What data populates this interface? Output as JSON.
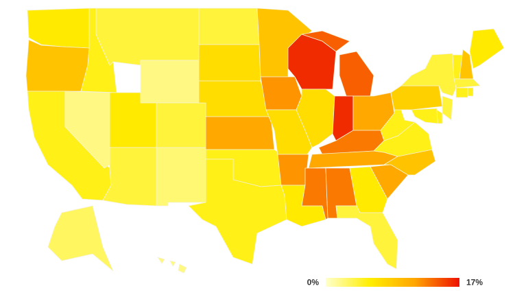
{
  "chart_data": {
    "type": "choropleth",
    "values": [
      6,
      9,
      5,
      2,
      5,
      4,
      2,
      6,
      4,
      2.5,
      4,
      4,
      7,
      7,
      11,
      5,
      5,
      9,
      12,
      7,
      12,
      6,
      16,
      7,
      14,
      16,
      11,
      13,
      11,
      13,
      13,
      6,
      4,
      11,
      9,
      5,
      5,
      8,
      4,
      5,
      9,
      6,
      4,
      5,
      5,
      4,
      5,
      5,
      3,
      2
    ],
    "colorlim": [
      0,
      17
    ],
    "colors": [
      "#ffffcc",
      "#ffee00",
      "#ffa500",
      "#ee1100"
    ],
    "legend_ticks": [
      {
        "value": 0,
        "label": "0%"
      },
      {
        "value": 17,
        "label": "17%"
      }
    ]
  }
}
